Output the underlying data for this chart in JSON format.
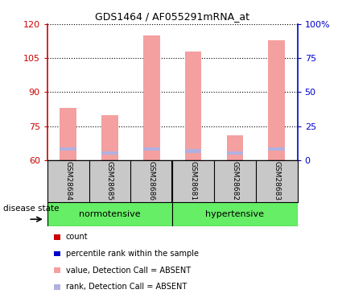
{
  "title": "GDS1464 / AF055291mRNA_at",
  "samples": [
    "GSM28684",
    "GSM28685",
    "GSM28686",
    "GSM28681",
    "GSM28682",
    "GSM28683"
  ],
  "groups": [
    "normotensive",
    "hypertensive"
  ],
  "group_sizes": [
    3,
    3
  ],
  "ylim_left": [
    60,
    120
  ],
  "ylim_right": [
    0,
    100
  ],
  "yticks_left": [
    60,
    75,
    90,
    105,
    120
  ],
  "yticks_right": [
    0,
    25,
    50,
    75,
    100
  ],
  "bar_values": [
    83,
    80,
    115,
    108,
    71,
    113
  ],
  "rank_values": [
    65,
    63,
    65,
    64,
    63,
    65
  ],
  "bar_color_absent": "#f4a0a0",
  "rank_color_absent": "#b0b0e0",
  "bar_bottom": 60,
  "legend_items": [
    {
      "color": "#cc0000",
      "label": "count"
    },
    {
      "color": "#0000cc",
      "label": "percentile rank within the sample"
    },
    {
      "color": "#f4a0a0",
      "label": "value, Detection Call = ABSENT"
    },
    {
      "color": "#b0b0e0",
      "label": "rank, Detection Call = ABSENT"
    }
  ],
  "group_color": "#66ee66",
  "group_label": "disease state",
  "left_axis_color": "#cc0000",
  "right_axis_color": "#0000cc",
  "bar_width": 0.4,
  "sample_bg_color": "#c8c8c8",
  "fig_width": 4.2,
  "fig_height": 3.75,
  "dpi": 100
}
